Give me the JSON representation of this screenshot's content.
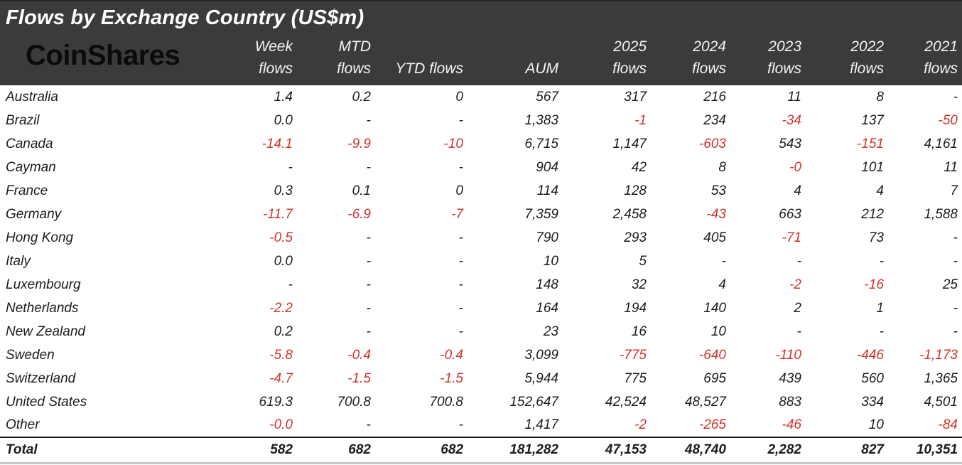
{
  "title": "Flows by Exchange Country (US$m)",
  "logo_text": "CoinShares",
  "colors": {
    "header_bg": "#3b3b3b",
    "header_text": "#ffffff",
    "body_text": "#1c1c1c",
    "negative_value": "#cf342b",
    "logo_text_color": "#0b0b0b"
  },
  "chart_data": {
    "type": "table",
    "title": "Flows by Exchange Country (US$m)",
    "header_lines": [
      {
        "line1": "Week",
        "line2": "flows"
      },
      {
        "line1": "MTD",
        "line2": "flows"
      },
      {
        "line1": "",
        "line2": "YTD flows"
      },
      {
        "line1": "",
        "line2": "AUM"
      },
      {
        "line1": "2025",
        "line2": "flows"
      },
      {
        "line1": "2024",
        "line2": "flows"
      },
      {
        "line1": "2023",
        "line2": "flows"
      },
      {
        "line1": "2022",
        "line2": "flows"
      },
      {
        "line1": "2021",
        "line2": "flows"
      }
    ],
    "columns": [
      "Week flows",
      "MTD flows",
      "YTD flows",
      "AUM",
      "2025 flows",
      "2024 flows",
      "2023 flows",
      "2022 flows",
      "2021 flows"
    ],
    "rows": [
      {
        "country": "Australia",
        "values": [
          "1.4",
          "0.2",
          "0",
          "567",
          "317",
          "216",
          "11",
          "8",
          "-"
        ]
      },
      {
        "country": "Brazil",
        "values": [
          "0.0",
          "-",
          "-",
          "1,383",
          "-1",
          "234",
          "-34",
          "137",
          "-50"
        ]
      },
      {
        "country": "Canada",
        "values": [
          "-14.1",
          "-9.9",
          "-10",
          "6,715",
          "1,147",
          "-603",
          "543",
          "-151",
          "4,161"
        ]
      },
      {
        "country": "Cayman",
        "values": [
          "-",
          "-",
          "-",
          "904",
          "42",
          "8",
          "-0",
          "101",
          "11"
        ]
      },
      {
        "country": "France",
        "values": [
          "0.3",
          "0.1",
          "0",
          "114",
          "128",
          "53",
          "4",
          "4",
          "7"
        ]
      },
      {
        "country": "Germany",
        "values": [
          "-11.7",
          "-6.9",
          "-7",
          "7,359",
          "2,458",
          "-43",
          "663",
          "212",
          "1,588"
        ]
      },
      {
        "country": "Hong Kong",
        "values": [
          "-0.5",
          "-",
          "-",
          "790",
          "293",
          "405",
          "-71",
          "73",
          "-"
        ]
      },
      {
        "country": "Italy",
        "values": [
          "0.0",
          "-",
          "-",
          "10",
          "5",
          "-",
          "-",
          "-",
          "-"
        ]
      },
      {
        "country": "Luxembourg",
        "values": [
          "-",
          "-",
          "-",
          "148",
          "32",
          "4",
          "-2",
          "-16",
          "25"
        ]
      },
      {
        "country": "Netherlands",
        "values": [
          "-2.2",
          "-",
          "-",
          "164",
          "194",
          "140",
          "2",
          "1",
          "-"
        ]
      },
      {
        "country": "New Zealand",
        "values": [
          "0.2",
          "-",
          "-",
          "23",
          "16",
          "10",
          "-",
          "-",
          "-"
        ]
      },
      {
        "country": "Sweden",
        "values": [
          "-5.8",
          "-0.4",
          "-0.4",
          "3,099",
          "-775",
          "-640",
          "-110",
          "-446",
          "-1,173"
        ]
      },
      {
        "country": "Switzerland",
        "values": [
          "-4.7",
          "-1.5",
          "-1.5",
          "5,944",
          "775",
          "695",
          "439",
          "560",
          "1,365"
        ]
      },
      {
        "country": "United States",
        "values": [
          "619.3",
          "700.8",
          "700.8",
          "152,647",
          "42,524",
          "48,527",
          "883",
          "334",
          "4,501"
        ]
      },
      {
        "country": "Other",
        "values": [
          "-0.0",
          "-",
          "-",
          "1,417",
          "-2",
          "-265",
          "-46",
          "10",
          "-84"
        ]
      }
    ],
    "total_row": {
      "country": "Total",
      "values": [
        "582",
        "682",
        "682",
        "181,282",
        "47,153",
        "48,740",
        "2,282",
        "827",
        "10,351"
      ]
    }
  }
}
